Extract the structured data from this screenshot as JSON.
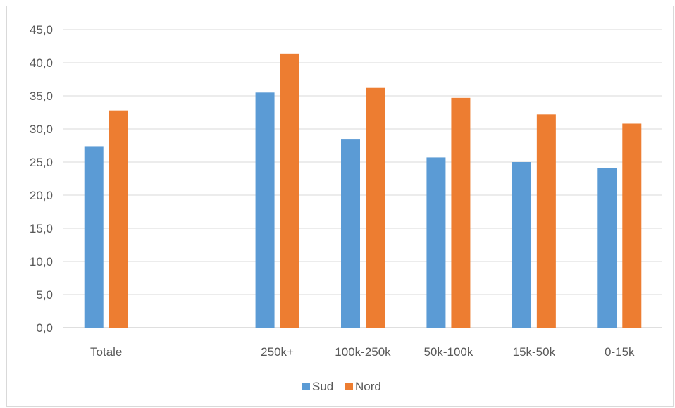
{
  "chart_data": {
    "type": "bar",
    "title": "",
    "xlabel": "",
    "ylabel": "",
    "categories": [
      "Totale",
      "",
      "250k+",
      "100k-250k",
      "50k-100k",
      "15k-50k",
      "0-15k"
    ],
    "series": [
      {
        "name": "Sud",
        "color": "#5b9bd5",
        "values": [
          27.4,
          null,
          35.5,
          28.5,
          25.7,
          25.0,
          24.1
        ]
      },
      {
        "name": "Nord",
        "color": "#ed7d31",
        "values": [
          32.8,
          null,
          41.4,
          36.2,
          34.7,
          32.2,
          30.8
        ]
      }
    ],
    "ylim": [
      0,
      45
    ],
    "y_ticks": [
      "0,0",
      "5,0",
      "10,0",
      "15,0",
      "20,0",
      "25,0",
      "30,0",
      "35,0",
      "40,0",
      "45,0"
    ],
    "grid": true,
    "legend_position": "bottom"
  }
}
